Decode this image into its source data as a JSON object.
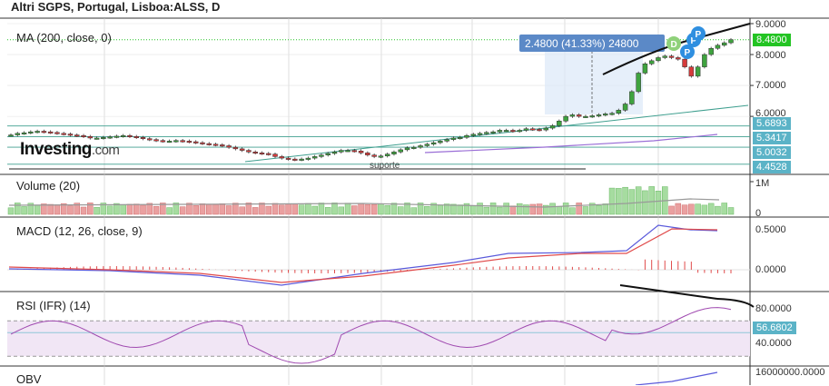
{
  "title": "Altri SGPS, Portugal, Lisboa:ALSS, D",
  "logo": {
    "text": "Investing",
    "suffix": ".com"
  },
  "panels": {
    "price_label": "MA (200, close, 0)",
    "volume_label": "Volume (20)",
    "macd_label": "MACD (12, 26, close, 9)",
    "rsi_label": "RSI (IFR) (14)",
    "obv_label": "OBV"
  },
  "price_axis": {
    "ticks": [
      "9.0000",
      "8.0000",
      "7.0000",
      "6.0000"
    ],
    "last_price": "8.4800",
    "levels": [
      "5.6893",
      "5.3417",
      "5.0032",
      "4.4528"
    ]
  },
  "volume_axis": {
    "ticks": [
      "1M",
      "0"
    ]
  },
  "macd_axis": {
    "ticks": [
      "0.5000",
      "0.0000"
    ]
  },
  "rsi_axis": {
    "ticks": [
      "80.0000",
      "56.6802",
      "40.0000"
    ]
  },
  "obv_axis": {
    "ticks": [
      "16000000.0000"
    ]
  },
  "annotations": {
    "measure": "2.4800 (41.33%) 24800",
    "support": "suporte",
    "event_markers": [
      "D",
      "P",
      "P",
      "P"
    ]
  },
  "colors": {
    "up": "#3fa33f",
    "down": "#d63b3b",
    "grid": "#c9c9c9",
    "support_line": "#3f9f8f",
    "ma_line": "#9a6ed6",
    "macd_line": "#5a5adb",
    "signal_line": "#e04a4a",
    "rsi_line": "#a04ab0",
    "accent_green": "#23c423",
    "level_box": "#5bb3c7",
    "measure_box": "#5b89c7"
  },
  "chart_data": {
    "type": "candlestick",
    "price_series": [
      5.4,
      5.45,
      5.47,
      5.5,
      5.52,
      5.5,
      5.48,
      5.45,
      5.43,
      5.4,
      5.38,
      5.35,
      5.3,
      5.3,
      5.32,
      5.34,
      5.36,
      5.38,
      5.35,
      5.32,
      5.28,
      5.25,
      5.22,
      5.2,
      5.2,
      5.22,
      5.2,
      5.18,
      5.15,
      5.12,
      5.1,
      5.08,
      5.05,
      5.0,
      4.95,
      4.9,
      4.85,
      4.82,
      4.8,
      4.78,
      4.7,
      4.65,
      4.62,
      4.6,
      4.62,
      4.65,
      4.7,
      4.75,
      4.8,
      4.85,
      4.9,
      4.9,
      4.88,
      4.82,
      4.75,
      4.7,
      4.72,
      4.78,
      4.85,
      4.92,
      4.98,
      5.0,
      5.05,
      5.1,
      5.15,
      5.2,
      5.25,
      5.3,
      5.32,
      5.38,
      5.42,
      5.45,
      5.48,
      5.5,
      5.55,
      5.55,
      5.52,
      5.55,
      5.6,
      5.58,
      5.56,
      5.62,
      5.7,
      5.85,
      6.0,
      6.05,
      6.0,
      6.0,
      6.02,
      6.05,
      6.08,
      6.1,
      6.2,
      6.4,
      6.8,
      7.4,
      7.7,
      7.8,
      7.9,
      7.95,
      7.9,
      7.85,
      7.6,
      7.3,
      7.6,
      8.0,
      8.2,
      8.3,
      8.38,
      8.48
    ],
    "ma_line": [
      4.4,
      4.48
    ],
    "support_level": 4.4528,
    "horizontal_levels": [
      5.6893,
      5.3417,
      5.0032,
      4.4528
    ],
    "last_price": 8.48,
    "price_range": [
      4.3,
      9.0
    ],
    "volume_range": [
      0,
      1000000
    ],
    "macd_range": [
      -0.15,
      0.6
    ],
    "rsi_range": [
      20,
      100
    ],
    "rsi_levels": [
      70,
      30
    ],
    "rsi_last": 56.6802
  }
}
